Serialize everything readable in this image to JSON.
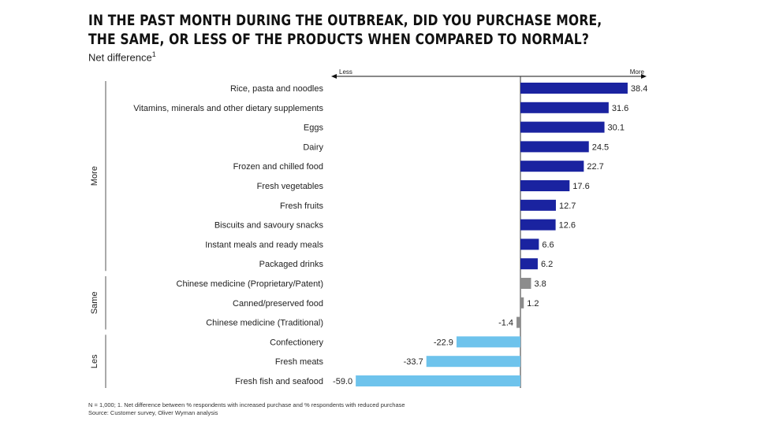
{
  "title": "IN THE PAST MONTH DURING THE OUTBREAK, DID YOU PURCHASE MORE, THE SAME, OR LESS OF THE PRODUCTS WHEN COMPARED TO NORMAL?",
  "subtitle": "Net difference",
  "subtitle_sup": "1",
  "footnote": "N = 1,000; 1. Net difference between % respondents with increased purchase and % respondents with reduced purchase",
  "source": "Source: Customer survey, Oliver Wyman analysis",
  "chart_data": {
    "type": "bar",
    "orientation": "horizontal",
    "axis_left_label": "Less",
    "axis_right_label": "More",
    "categories": [
      "Rice, pasta and noodles",
      "Vitamins, minerals and other dietary supplements",
      "Eggs",
      "Dairy",
      "Frozen and chilled food",
      "Fresh vegetables",
      "Fresh fruits",
      "Biscuits and savoury snacks",
      "Instant meals and ready meals",
      "Packaged drinks",
      "Chinese medicine (Proprietary/Patent)",
      "Canned/preserved food",
      "Chinese medicine (Traditional)",
      "Confectionery",
      "Fresh meats",
      "Fresh fish and seafood"
    ],
    "values": [
      38.4,
      31.6,
      30.1,
      24.5,
      22.7,
      17.6,
      12.7,
      12.6,
      6.6,
      6.2,
      3.8,
      1.2,
      -1.4,
      -22.9,
      -33.7,
      -59.0
    ],
    "labels": [
      "38.4",
      "31.6",
      "30.1",
      "24.5",
      "22.7",
      "17.6",
      "12.7",
      "12.6",
      "6.6",
      "6.2",
      "3.8",
      "1.2",
      "-1.4",
      "-22.9",
      "-33.7",
      "-59.0"
    ],
    "groups": [
      {
        "name": "More",
        "start": 0,
        "end": 9,
        "color": "#1a23a0"
      },
      {
        "name": "Same",
        "start": 10,
        "end": 12,
        "color": "#8c8c8c"
      },
      {
        "name": "Les",
        "start": 13,
        "end": 15,
        "color": "#6ec3ec"
      }
    ]
  }
}
